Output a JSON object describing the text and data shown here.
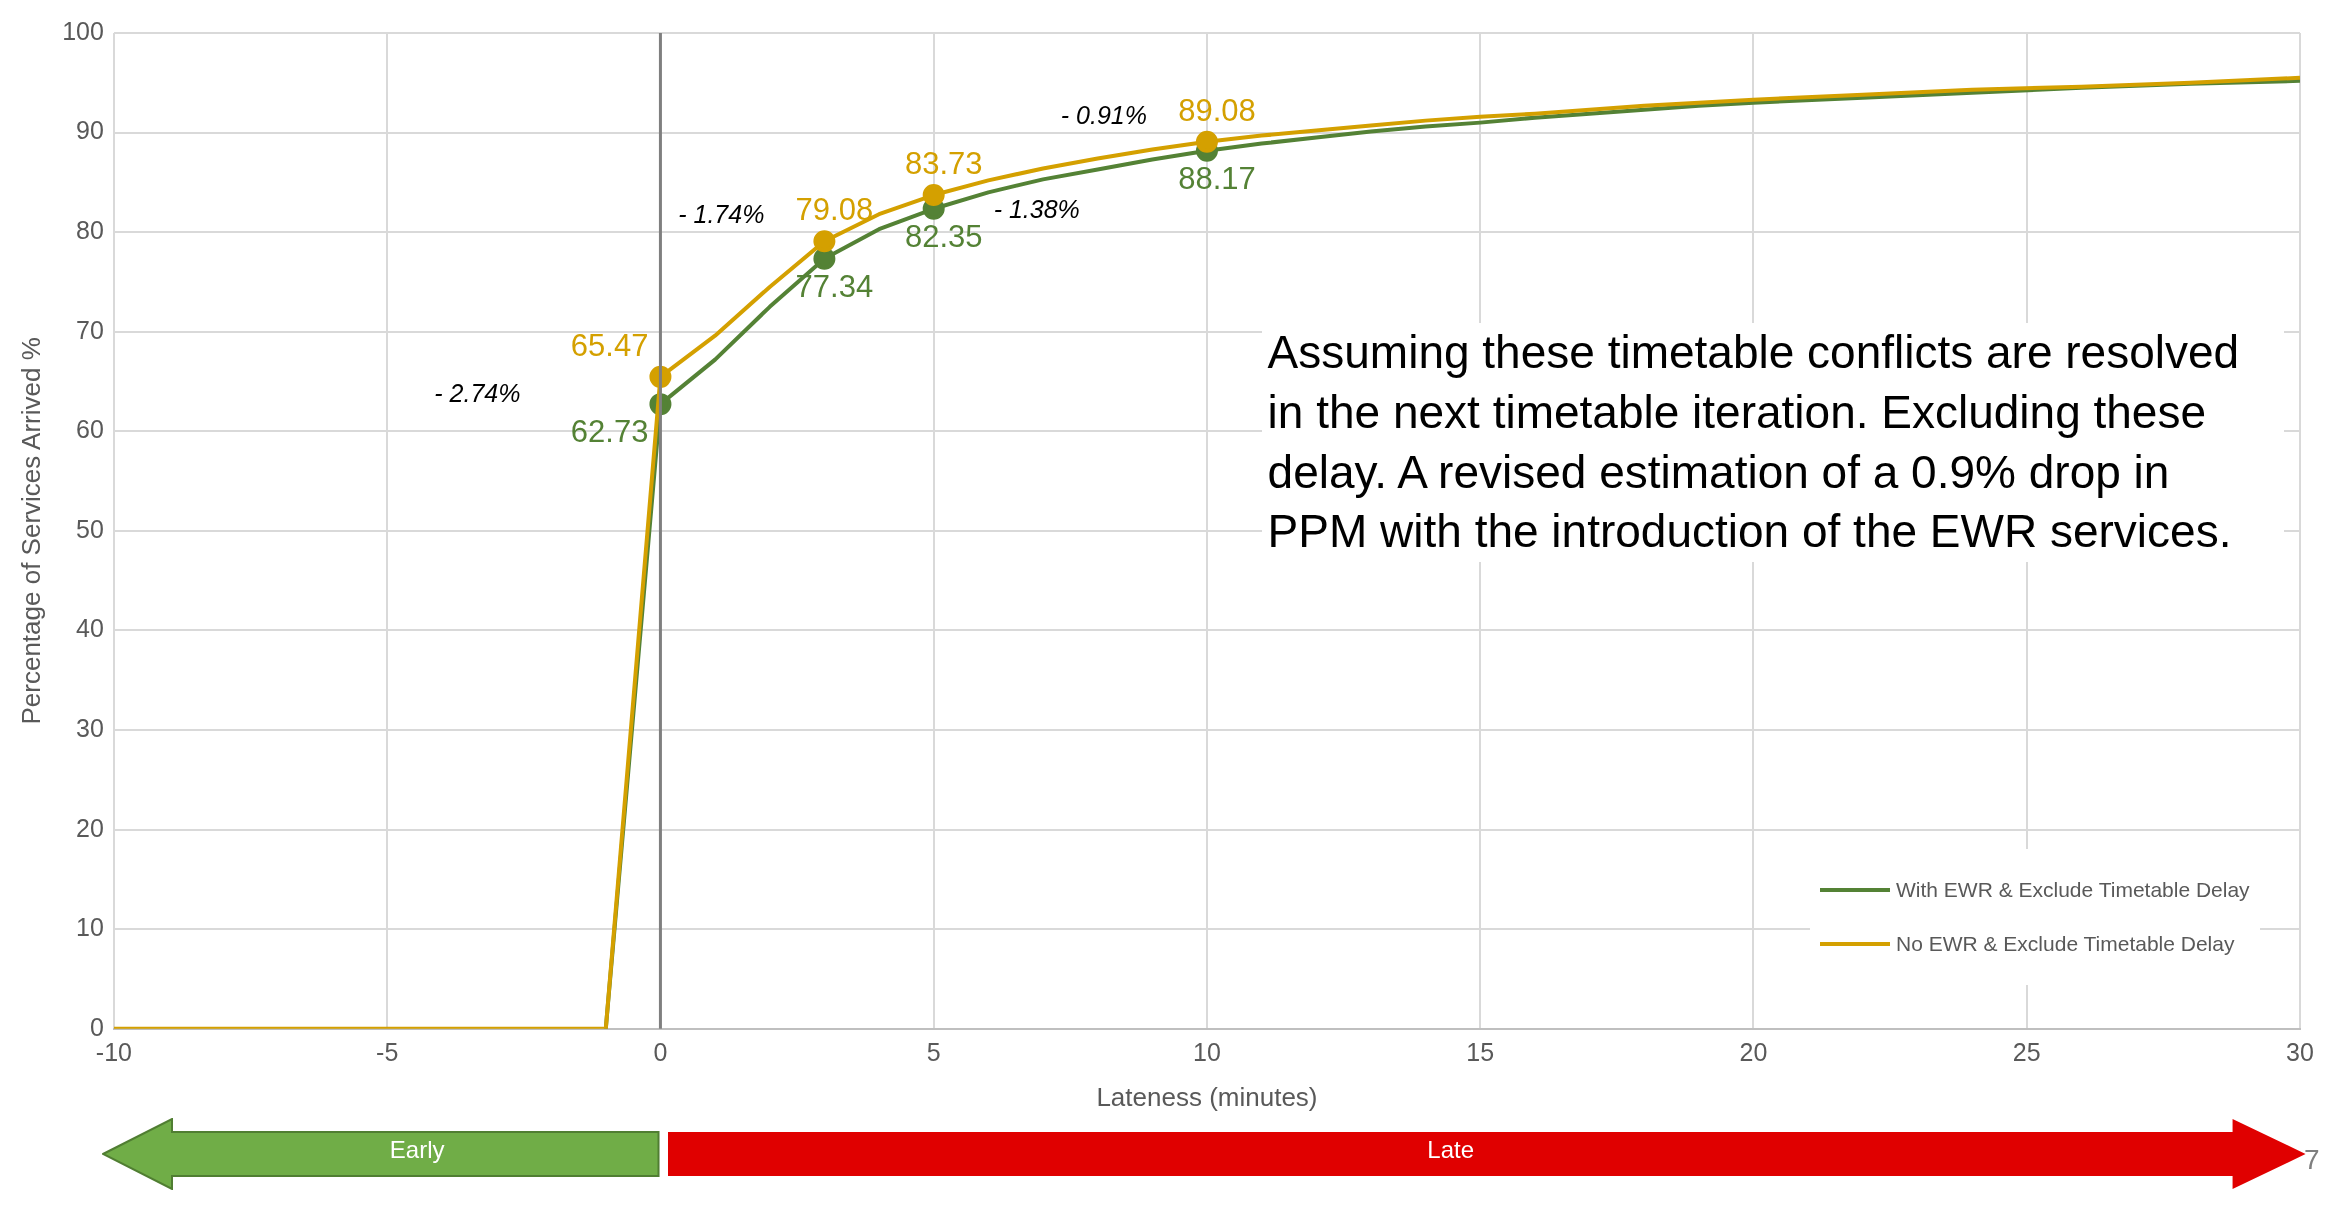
{
  "chart_data": {
    "type": "line",
    "xlabel": "Lateness (minutes)",
    "ylabel": "Percentage of Services Arrived %",
    "x": [
      -10,
      -9,
      -8,
      -7,
      -6,
      -5,
      -4,
      -3,
      -2,
      -1,
      0,
      1,
      2,
      3,
      4,
      5,
      6,
      7,
      8,
      9,
      10,
      11,
      12,
      13,
      14,
      15,
      16,
      17,
      18,
      19,
      20,
      22,
      24,
      26,
      28,
      30
    ],
    "series": [
      {
        "name": "With EWR & Exclude Timetable Delay",
        "color": "#548235",
        "values": [
          null,
          null,
          null,
          null,
          null,
          null,
          null,
          null,
          null,
          0,
          62.73,
          67.2,
          72.5,
          77.34,
          80.3,
          82.35,
          84.0,
          85.3,
          86.3,
          87.3,
          88.17,
          88.9,
          89.5,
          90.1,
          90.6,
          91.0,
          91.5,
          91.9,
          92.3,
          92.7,
          93.0,
          93.5,
          94.0,
          94.5,
          94.9,
          95.2
        ],
        "value_labels": [
          null,
          null,
          null,
          null,
          null,
          null,
          null,
          null,
          null,
          null,
          "62.73",
          null,
          null,
          "77.34",
          null,
          "82.35",
          null,
          null,
          null,
          null,
          "88.17",
          null,
          null,
          null,
          null,
          null,
          null,
          null,
          null,
          null,
          null,
          null,
          null,
          null,
          null,
          null
        ]
      },
      {
        "name": "No EWR & Exclude Timetable Delay",
        "color": "#d4a000",
        "values": [
          0,
          0,
          0,
          0,
          0,
          0,
          0,
          0,
          0,
          0,
          65.47,
          69.6,
          74.5,
          79.08,
          81.8,
          83.73,
          85.2,
          86.4,
          87.4,
          88.3,
          89.08,
          89.7,
          90.2,
          90.7,
          91.2,
          91.6,
          91.9,
          92.3,
          92.7,
          93.0,
          93.3,
          93.8,
          94.3,
          94.6,
          95.0,
          95.5
        ],
        "value_labels": [
          null,
          null,
          null,
          null,
          null,
          null,
          null,
          null,
          null,
          null,
          "65.47",
          null,
          null,
          "79.08",
          null,
          "83.73",
          null,
          null,
          null,
          null,
          "89.08",
          null,
          null,
          null,
          null,
          null,
          null,
          null,
          null,
          null,
          null,
          null,
          null,
          null,
          null,
          null
        ]
      }
    ],
    "xlim": [
      -10,
      30
    ],
    "xticks": [
      -10,
      -5,
      0,
      5,
      10,
      15,
      20,
      25,
      30
    ],
    "ylim": [
      0,
      100
    ],
    "yticks": [
      0,
      10,
      20,
      30,
      40,
      50,
      60,
      70,
      80,
      90,
      100
    ],
    "grid": true,
    "legend": "bottom right",
    "line_style": "solid",
    "ref_lines": [
      {
        "axis": "x",
        "value": 0,
        "color": "#7f7f7f"
      }
    ],
    "annotations": [
      "Assuming these timetable conflicts are resolved in the next timetable iteration. Excluding these delay. A revised estimation of a 0.9% drop in PPM with the introduction of the EWR services.",
      "Early",
      "Late",
      "7",
      "- 2.74%",
      "- 1.74%",
      "- 1.38%",
      "- 0.91%"
    ]
  }
}
